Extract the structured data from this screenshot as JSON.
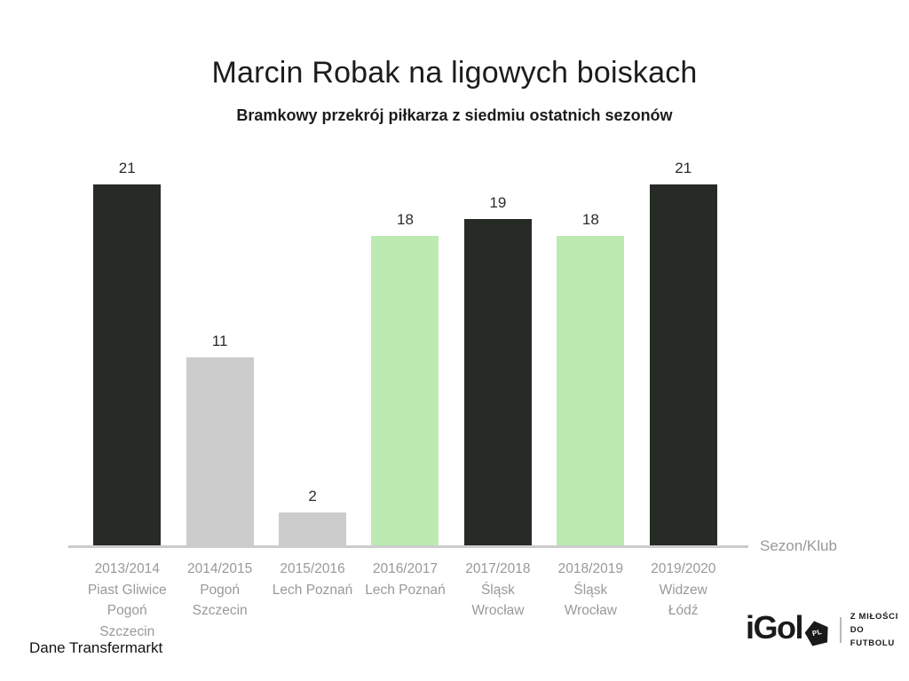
{
  "page": {
    "title": "Marcin Robak na ligowych boiskach",
    "subtitle": "Bramkowy przekrój piłkarza z siedmiu ostatnich sezonów",
    "source_note": "Dane Transfermarkt",
    "axis_title": "Sezon/Klub"
  },
  "logo": {
    "brand": "iGol",
    "badge": "PL",
    "tagline_line1": "Z MIŁOŚCI",
    "tagline_line2": "DO FUTBOLU"
  },
  "colors": {
    "dark": "#262b25",
    "green": "#bceab1",
    "gray": "#cccccc",
    "axis": "#cccccc",
    "tick_text": "#999999",
    "value_text": "#2b2b2b"
  },
  "chart_data": {
    "type": "bar",
    "title": "Marcin Robak na ligowych boiskach",
    "subtitle": "Bramkowy przekrój piłkarza z siedmiu ostatnich sezonów",
    "xlabel": "Sezon/Klub",
    "ylabel": "",
    "ylim": [
      0,
      21
    ],
    "grid": false,
    "legend": false,
    "value_labels": true,
    "categories": [
      "2013/2014",
      "2014/2015",
      "2015/2016",
      "2016/2017",
      "2017/2018",
      "2018/2019",
      "2019/2020"
    ],
    "values": [
      21,
      11,
      2,
      18,
      19,
      18,
      21
    ],
    "bars": [
      {
        "season": "2013/2014",
        "club_lines": [
          "Piast Gliwice",
          "Pogoń",
          "Szczecin"
        ],
        "value": 21,
        "color": "dark"
      },
      {
        "season": "2014/2015",
        "club_lines": [
          "Pogoń",
          "Szczecin"
        ],
        "value": 11,
        "color": "gray"
      },
      {
        "season": "2015/2016",
        "club_lines": [
          "Lech Poznań"
        ],
        "value": 2,
        "color": "gray"
      },
      {
        "season": "2016/2017",
        "club_lines": [
          "Lech Poznań"
        ],
        "value": 18,
        "color": "green"
      },
      {
        "season": "2017/2018",
        "club_lines": [
          "Śląsk",
          "Wrocław"
        ],
        "value": 19,
        "color": "dark"
      },
      {
        "season": "2018/2019",
        "club_lines": [
          "Śląsk",
          "Wrocław"
        ],
        "value": 18,
        "color": "green"
      },
      {
        "season": "2019/2020",
        "club_lines": [
          "Widzew",
          "Łódź"
        ],
        "value": 21,
        "color": "dark"
      }
    ]
  }
}
